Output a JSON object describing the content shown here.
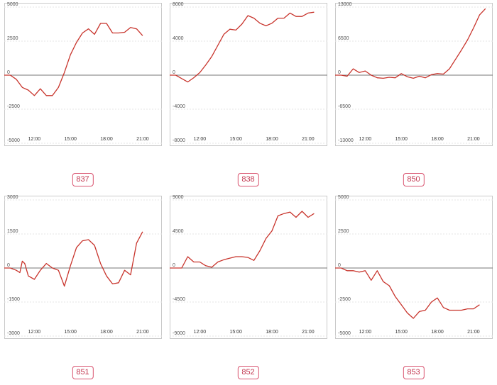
{
  "colors": {
    "series": "#c8342c",
    "badge": "#d9536f"
  },
  "chart_data": [
    {
      "type": "line",
      "label": "837",
      "ylim": [
        -5000,
        5000
      ],
      "yticks": [
        5000,
        2500,
        0,
        -2500,
        -5000
      ],
      "xticks": [
        "12:00",
        "15:00",
        "18:00",
        "21:00"
      ],
      "grid": true,
      "x": [
        9.5,
        10,
        10.5,
        11,
        11.5,
        12,
        12.5,
        13,
        13.5,
        14,
        14.5,
        15,
        15.5,
        16,
        16.5,
        17,
        17.5,
        18,
        18.5,
        19,
        19.5,
        20,
        20.5,
        21
      ],
      "values": [
        0,
        0,
        -300,
        -900,
        -1100,
        -1500,
        -1000,
        -1500,
        -1500,
        -900,
        200,
        1500,
        2400,
        3100,
        3400,
        3000,
        3800,
        3800,
        3100,
        3100,
        3150,
        3500,
        3400,
        2900
      ]
    },
    {
      "type": "line",
      "label": "838",
      "ylim": [
        -8000,
        8000
      ],
      "yticks": [
        8000,
        4000,
        0,
        -4000,
        -8000
      ],
      "xticks": [
        "12:00",
        "15:00",
        "18:00",
        "21:00"
      ],
      "grid": true,
      "x": [
        9.5,
        10,
        10.5,
        11,
        11.5,
        12,
        12.5,
        13,
        13.5,
        14,
        14.5,
        15,
        15.5,
        16,
        16.5,
        17,
        17.5,
        18,
        18.5,
        19,
        19.5,
        20,
        20.5,
        21,
        21.5
      ],
      "values": [
        0,
        0,
        -400,
        -800,
        -300,
        300,
        1200,
        2200,
        3500,
        4800,
        5400,
        5300,
        6000,
        7000,
        6700,
        6100,
        5800,
        6100,
        6700,
        6700,
        7300,
        6900,
        6900,
        7300,
        7400
      ]
    },
    {
      "type": "line",
      "label": "850",
      "ylim": [
        -13000,
        13000
      ],
      "yticks": [
        13000,
        6500,
        0,
        -6500,
        -13000
      ],
      "xticks": [
        "12:00",
        "15:00",
        "18:00",
        "21:00"
      ],
      "grid": true,
      "x": [
        9.5,
        10,
        10.5,
        11,
        11.5,
        12,
        12.5,
        13,
        13.5,
        14,
        14.5,
        15,
        15.5,
        16,
        16.5,
        17,
        17.5,
        18,
        18.5,
        19,
        19.5,
        20,
        20.5,
        21,
        21.5,
        22
      ],
      "values": [
        0,
        0,
        -200,
        1200,
        500,
        800,
        0,
        -500,
        -600,
        -400,
        -500,
        300,
        -300,
        -600,
        -200,
        -500,
        100,
        300,
        200,
        1200,
        3000,
        4800,
        6700,
        9000,
        11500,
        12700
      ]
    },
    {
      "type": "line",
      "label": "851",
      "ylim": [
        -3000,
        3000
      ],
      "yticks": [
        3000,
        1500,
        0,
        -1500,
        -3000
      ],
      "xticks": [
        "12:00",
        "15:00",
        "18:00",
        "21:00"
      ],
      "grid": true,
      "x": [
        9.5,
        10,
        10.5,
        10.8,
        11,
        11.2,
        11.5,
        12,
        12.5,
        13,
        13.5,
        14,
        14.5,
        15,
        15.5,
        16,
        16.5,
        17,
        17.5,
        18,
        18.5,
        19,
        19.5,
        20,
        20.5,
        21
      ],
      "values": [
        0,
        0,
        -100,
        -200,
        300,
        200,
        -350,
        -500,
        -100,
        200,
        0,
        -100,
        -800,
        100,
        900,
        1200,
        1250,
        1000,
        200,
        -350,
        -700,
        -650,
        -100,
        -300,
        1100,
        1600
      ]
    },
    {
      "type": "line",
      "label": "852",
      "ylim": [
        -9000,
        9000
      ],
      "yticks": [
        9000,
        4500,
        0,
        -4500,
        -9000
      ],
      "xticks": [
        "12:00",
        "15:00",
        "18:00",
        "21:00"
      ],
      "grid": true,
      "x": [
        9.5,
        10,
        10.5,
        11,
        11.5,
        12,
        12.5,
        13,
        13.5,
        14,
        14.5,
        15,
        15.5,
        16,
        16.5,
        17,
        17.5,
        18,
        18.5,
        19,
        19.5,
        20,
        20.5,
        21,
        21.5
      ],
      "values": [
        0,
        0,
        0,
        1500,
        800,
        800,
        300,
        100,
        800,
        1100,
        1300,
        1500,
        1500,
        1400,
        1000,
        2300,
        3900,
        4900,
        6900,
        7200,
        7400,
        6700,
        7500,
        6700,
        7200
      ]
    },
    {
      "type": "line",
      "label": "853",
      "ylim": [
        -5000,
        5000
      ],
      "yticks": [
        5000,
        2500,
        0,
        -2500,
        -5000
      ],
      "xticks": [
        "12:00",
        "15:00",
        "18:00",
        "21:00"
      ],
      "grid": true,
      "x": [
        9.5,
        10,
        10.5,
        11,
        11.5,
        12,
        12.5,
        13,
        13.5,
        14,
        14.5,
        15,
        15.5,
        16,
        16.5,
        17,
        17.5,
        18,
        18.5,
        19,
        19.5,
        20,
        20.5,
        21,
        21.5
      ],
      "values": [
        0,
        0,
        -200,
        -200,
        -300,
        -200,
        -900,
        -200,
        -1000,
        -1300,
        -2100,
        -2700,
        -3300,
        -3700,
        -3200,
        -3100,
        -2500,
        -2200,
        -2900,
        -3100,
        -3100,
        -3100,
        -3000,
        -3000,
        -2700
      ]
    }
  ]
}
